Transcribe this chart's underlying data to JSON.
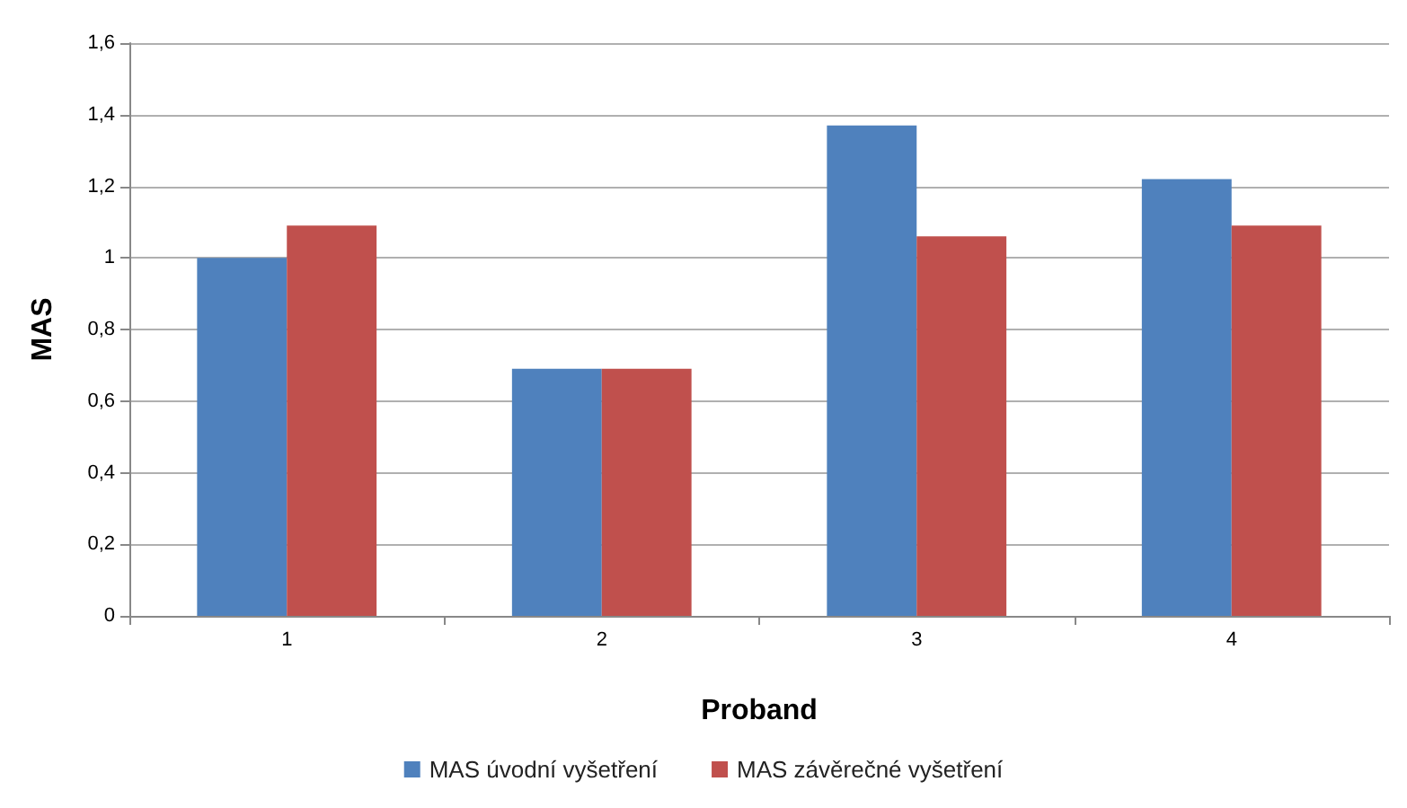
{
  "chart_data": {
    "type": "bar",
    "xlabel": "Proband",
    "ylabel": "MAS",
    "categories": [
      "1",
      "2",
      "3",
      "4"
    ],
    "series": [
      {
        "name": "MAS úvodní vyšetření",
        "color": "#4f81bd",
        "values": [
          1.0,
          0.69,
          1.37,
          1.22
        ]
      },
      {
        "name": "MAS závěrečné vyšetření",
        "color": "#c0504d",
        "values": [
          1.09,
          0.69,
          1.06,
          1.09
        ]
      }
    ],
    "ylim": [
      0,
      1.6
    ],
    "yticks": [
      {
        "value": 0,
        "label": "0"
      },
      {
        "value": 0.2,
        "label": "0,2"
      },
      {
        "value": 0.4,
        "label": "0,4"
      },
      {
        "value": 0.6,
        "label": "0,6"
      },
      {
        "value": 0.8,
        "label": "0,8"
      },
      {
        "value": 1,
        "label": "1"
      },
      {
        "value": 1.2,
        "label": "1,2"
      },
      {
        "value": 1.4,
        "label": "1,4"
      },
      {
        "value": 1.6,
        "label": "1,6"
      }
    ],
    "grid": "y",
    "legend": "bottom"
  }
}
